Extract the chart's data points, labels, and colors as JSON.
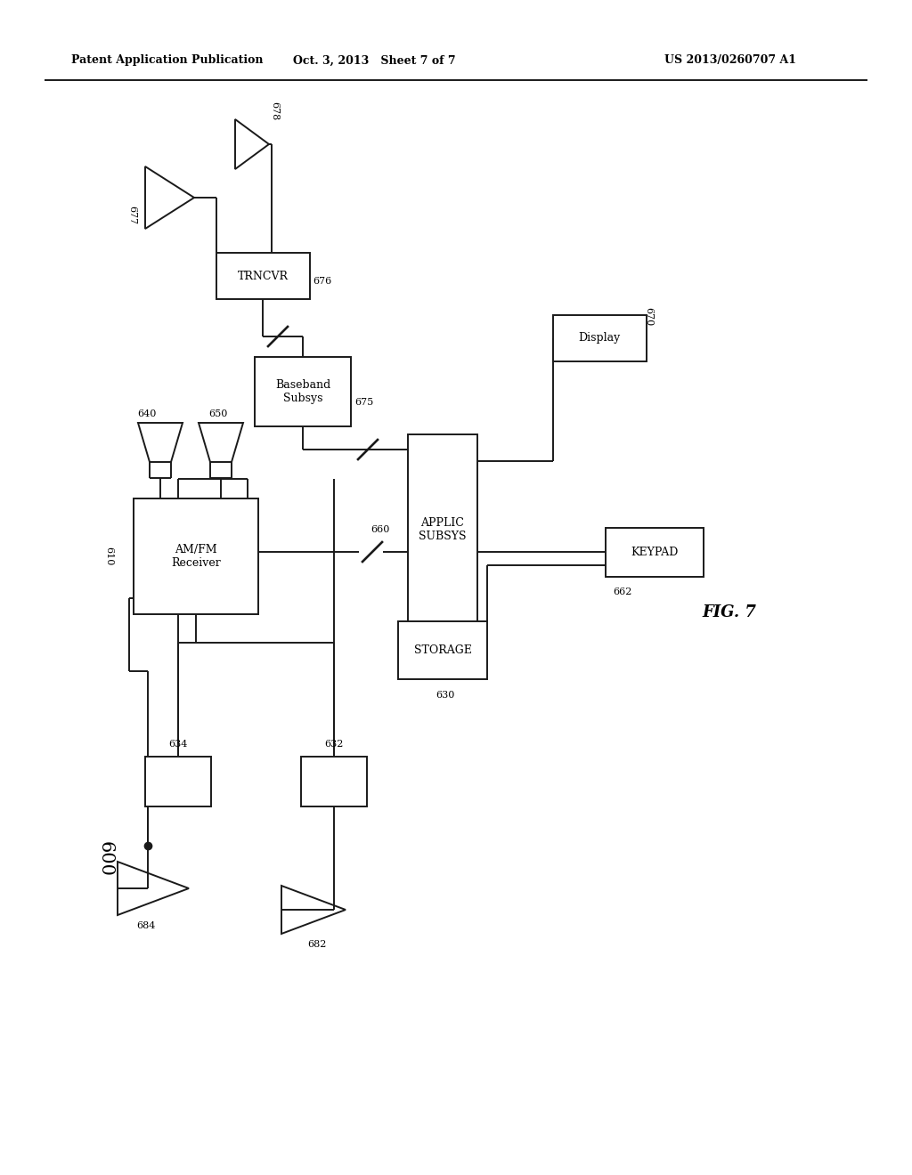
{
  "bg_color": "#ffffff",
  "line_color": "#1a1a1a",
  "header_left": "Patent Application Publication",
  "header_mid": "Oct. 3, 2013   Sheet 7 of 7",
  "header_right": "US 2013/0260707 A1",
  "fig_label": "FIG. 7",
  "system_number": "600"
}
